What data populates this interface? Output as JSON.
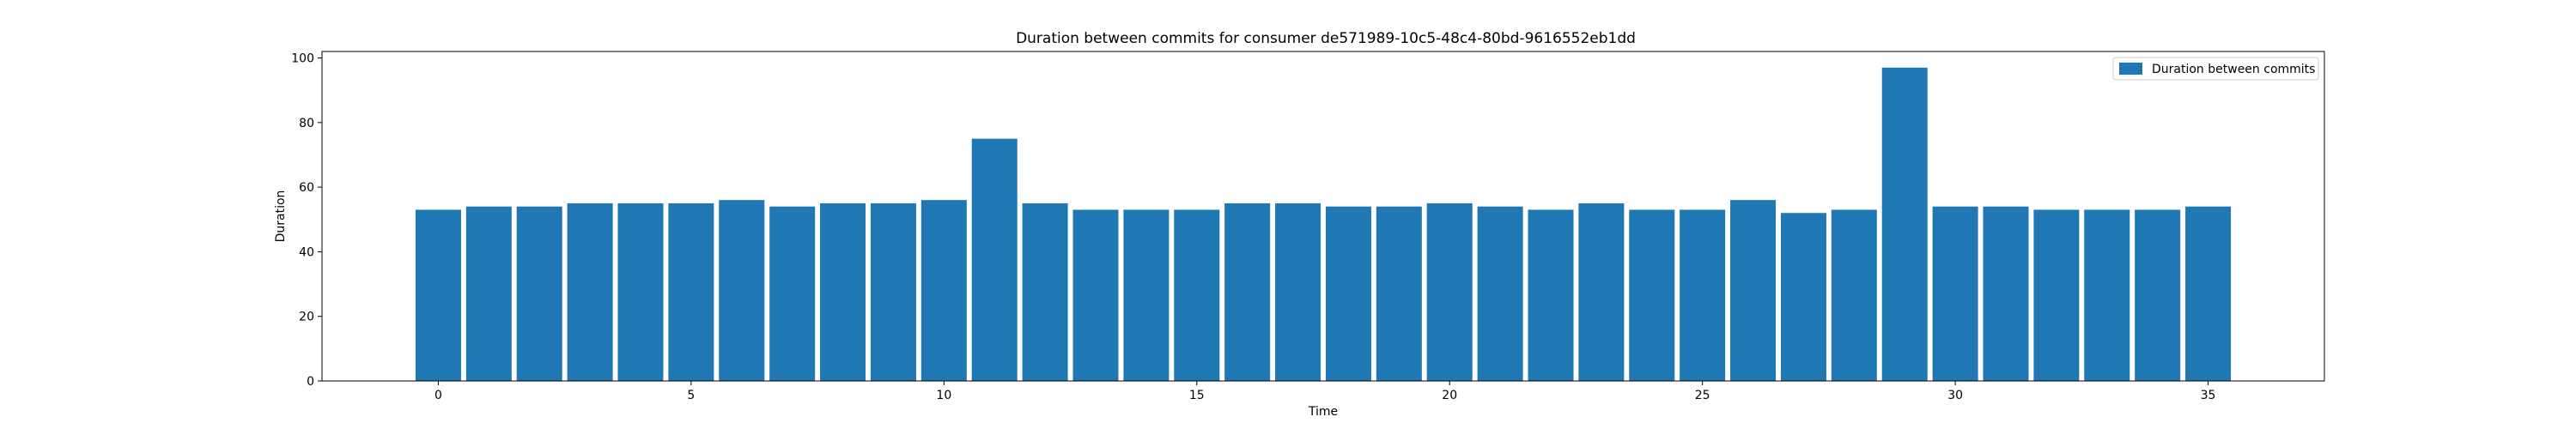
{
  "chart_data": {
    "type": "bar",
    "title": "Duration between commits for consumer de571989-10c5-48c4-80bd-9616552eb1dd",
    "xlabel": "Time",
    "ylabel": "Duration",
    "x": [
      0,
      1,
      2,
      3,
      4,
      5,
      6,
      7,
      8,
      9,
      10,
      11,
      12,
      13,
      14,
      15,
      16,
      17,
      18,
      19,
      20,
      21,
      22,
      23,
      24,
      25,
      26,
      27,
      28,
      29,
      30,
      31,
      32,
      33,
      34,
      35
    ],
    "series": [
      {
        "name": "Duration between commits",
        "values": [
          53,
          54,
          54,
          55,
          55,
          55,
          56,
          54,
          55,
          55,
          56,
          75,
          55,
          53,
          53,
          53,
          55,
          55,
          54,
          54,
          55,
          54,
          53,
          55,
          53,
          53,
          56,
          52,
          53,
          97,
          54,
          54,
          53,
          53,
          53,
          54
        ]
      }
    ],
    "xlim": [
      -2.3,
      37.3
    ],
    "ylim": [
      0,
      102
    ],
    "xticks": [
      0,
      5,
      10,
      15,
      20,
      25,
      30,
      35
    ],
    "yticks": [
      0,
      20,
      40,
      60,
      80,
      100
    ],
    "grid": false,
    "legend_position": "top-right",
    "color": "#1f77b4"
  }
}
